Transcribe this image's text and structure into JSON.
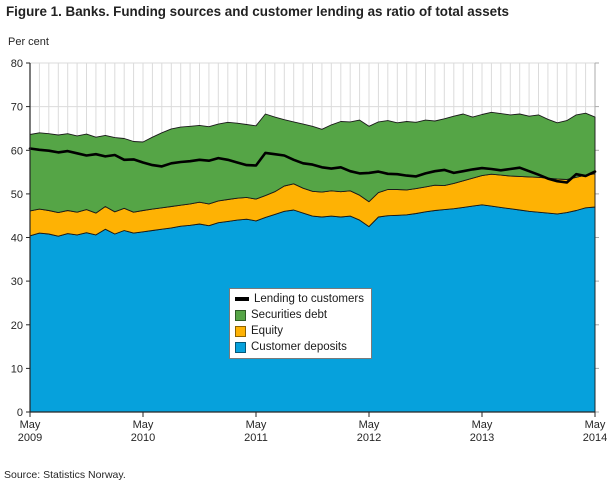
{
  "figure": {
    "title": "Figure 1. Banks. Funding sources and customer lending as ratio of total assets",
    "unit_label": "Per cent",
    "source": "Source: Statistics Norway."
  },
  "colors": {
    "customer_deposits": "#06A1DC",
    "equity": "#FEB204",
    "securities_debt": "#55A546",
    "lending_line": "#000000",
    "area_outline": "#1a1a1a",
    "gridline": "#DBDBDB",
    "axis": "#262626",
    "right_axis": "#ABABAB",
    "text": "#262626",
    "legend_border": "#7a7a7a"
  },
  "legend": {
    "items": [
      {
        "label": "Lending to customers",
        "swatch": "line",
        "color": "#000000"
      },
      {
        "label": "Securities debt",
        "swatch": "square",
        "color": "#55A546"
      },
      {
        "label": "Equity",
        "swatch": "square",
        "color": "#FEB204"
      },
      {
        "label": "Customer deposits",
        "swatch": "square",
        "color": "#06A1DC"
      }
    ]
  },
  "chart_data": {
    "type": "area",
    "title": "Figure 1. Banks. Funding sources and customer lending as ratio of total assets",
    "xlabel": "",
    "ylabel": "Per cent",
    "ylim": [
      0,
      80
    ],
    "y_ticks": [
      0,
      10,
      20,
      30,
      40,
      50,
      60,
      70,
      80
    ],
    "grid": "horizontal every 10, vertical every month",
    "legend_position": "center-left inside plot",
    "x_unit": "month",
    "x_start": "May 2009",
    "x_end": "May 2014",
    "n_points": 61,
    "x_tick_positions_months": [
      0,
      12,
      24,
      36,
      48,
      60
    ],
    "x_tick_labels": [
      [
        "May",
        "2009"
      ],
      [
        "May",
        "2010"
      ],
      [
        "May",
        "2011"
      ],
      [
        "May",
        "2012"
      ],
      [
        "May",
        "2013"
      ],
      [
        "May",
        "2014"
      ]
    ],
    "stacking_note": "Customer deposits, Equity and Securities debt are stacked areas (per cent of total assets); Lending to customers is an independent line.",
    "series": [
      {
        "name": "Customer deposits",
        "type": "area",
        "color": "#06A1DC",
        "values": [
          40.4,
          41.0,
          40.8,
          40.3,
          40.9,
          40.6,
          41.1,
          40.6,
          41.9,
          40.8,
          41.6,
          41.0,
          41.3,
          41.6,
          41.9,
          42.2,
          42.6,
          42.8,
          43.1,
          42.7,
          43.4,
          43.7,
          44.0,
          44.2,
          43.8,
          44.6,
          45.3,
          46.0,
          46.3,
          45.6,
          44.9,
          44.7,
          44.9,
          44.7,
          44.9,
          44.0,
          42.5,
          44.7,
          45.0,
          45.1,
          45.2,
          45.5,
          45.9,
          46.2,
          46.4,
          46.6,
          46.9,
          47.2,
          47.5,
          47.2,
          46.9,
          46.6,
          46.3,
          46.0,
          45.8,
          45.6,
          45.4,
          45.7,
          46.2,
          46.8,
          47.0
        ]
      },
      {
        "name": "Equity",
        "type": "area",
        "color": "#FEB204",
        "values": [
          5.7,
          5.5,
          5.4,
          5.4,
          5.3,
          5.2,
          5.3,
          5.0,
          5.2,
          5.1,
          5.1,
          4.8,
          4.9,
          4.9,
          4.9,
          4.9,
          4.8,
          4.9,
          5.0,
          5.0,
          5.0,
          5.0,
          5.0,
          5.0,
          5.0,
          5.0,
          5.2,
          5.8,
          6.0,
          5.7,
          5.7,
          5.7,
          5.8,
          5.8,
          5.8,
          5.7,
          5.7,
          5.6,
          6.0,
          5.9,
          5.7,
          5.7,
          5.7,
          5.8,
          5.5,
          5.8,
          6.1,
          6.4,
          6.7,
          7.3,
          7.4,
          7.5,
          7.7,
          7.9,
          8.0,
          8.0,
          8.0,
          7.6,
          7.6,
          7.5,
          7.6
        ]
      },
      {
        "name": "Securities debt",
        "type": "area",
        "color": "#55A546",
        "values": [
          17.5,
          17.5,
          17.6,
          17.8,
          17.6,
          17.5,
          17.3,
          17.4,
          16.3,
          17.0,
          16.0,
          16.2,
          15.7,
          16.5,
          17.2,
          17.8,
          17.9,
          17.8,
          17.6,
          17.7,
          17.6,
          17.7,
          17.2,
          16.7,
          16.8,
          18.7,
          17.1,
          15.2,
          14.2,
          14.7,
          14.9,
          14.4,
          15.1,
          16.1,
          15.8,
          17.2,
          17.3,
          16.2,
          15.8,
          15.3,
          15.7,
          15.2,
          15.3,
          14.7,
          15.3,
          15.4,
          15.3,
          14.0,
          14.0,
          14.2,
          14.1,
          14.0,
          14.3,
          13.9,
          14.3,
          13.5,
          12.9,
          13.5,
          14.3,
          14.2,
          13.0
        ]
      },
      {
        "name": "Lending to customers",
        "type": "line",
        "color": "#000000",
        "values": [
          60.4,
          60.1,
          59.9,
          59.5,
          59.8,
          59.3,
          58.8,
          59.1,
          58.6,
          58.9,
          57.8,
          57.9,
          57.2,
          56.6,
          56.3,
          57.0,
          57.3,
          57.5,
          57.8,
          57.6,
          58.2,
          57.8,
          57.2,
          56.6,
          56.5,
          59.4,
          59.1,
          58.8,
          57.8,
          57.0,
          56.7,
          56.1,
          55.8,
          56.1,
          55.2,
          54.7,
          54.8,
          55.1,
          54.6,
          54.5,
          54.2,
          54.0,
          54.7,
          55.2,
          55.5,
          54.8,
          55.2,
          55.6,
          55.9,
          55.7,
          55.4,
          55.7,
          56.0,
          55.2,
          54.4,
          53.5,
          52.9,
          52.6,
          54.5,
          54.1,
          55.1
        ]
      }
    ]
  }
}
